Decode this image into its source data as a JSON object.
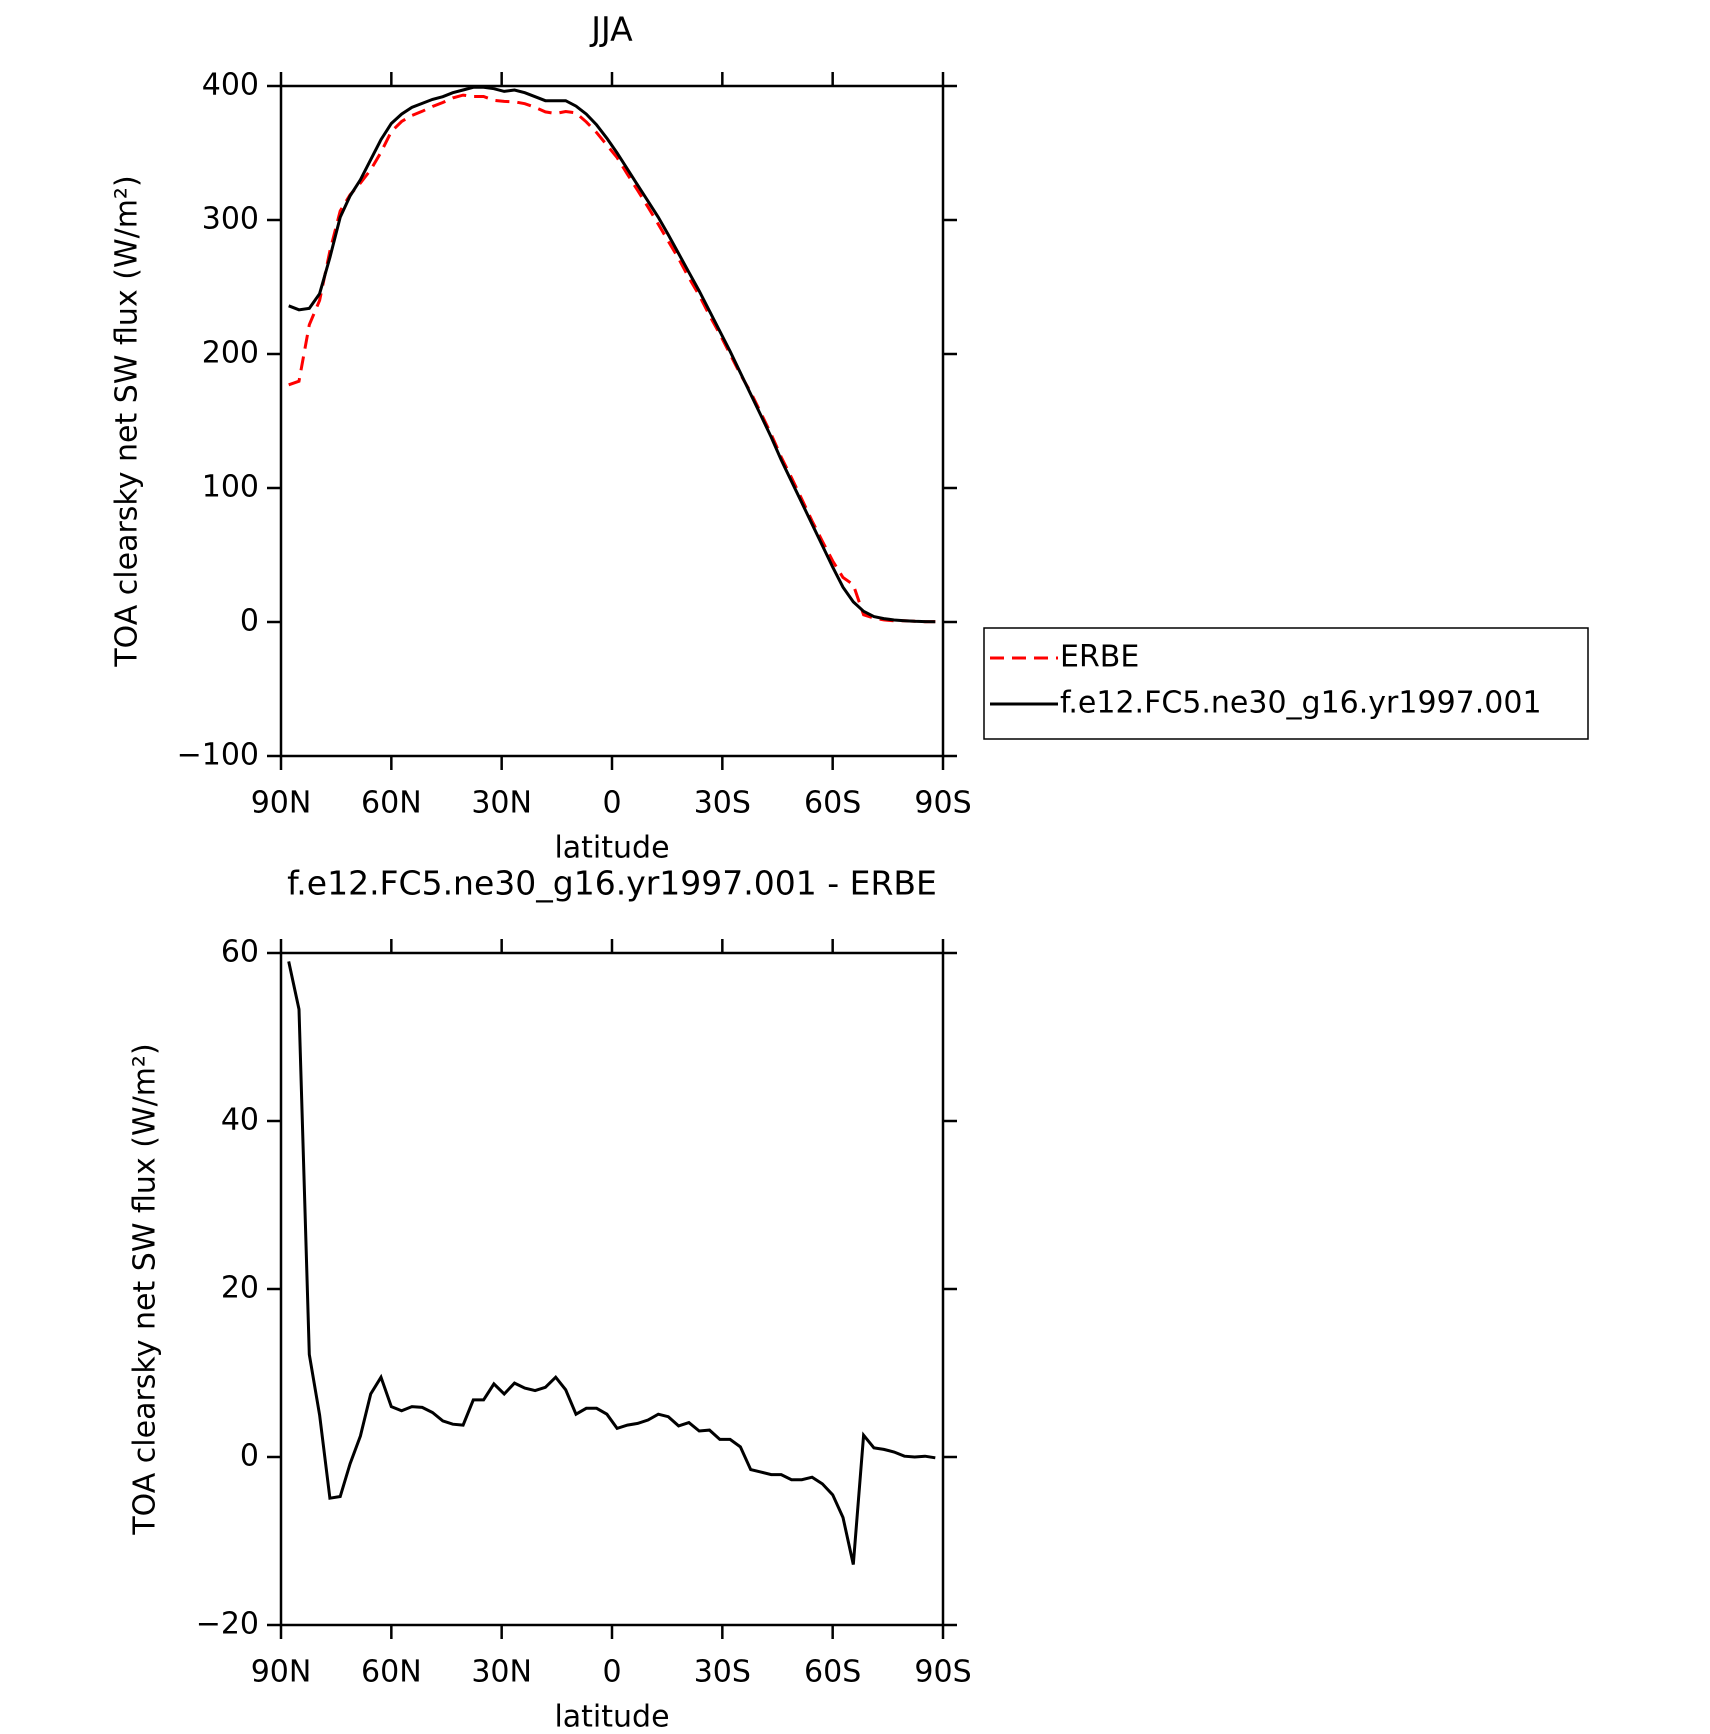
{
  "chart_data": [
    {
      "type": "line",
      "title": "JJA",
      "x_label": "latitude",
      "y_label": "TOA clearsky net SW flux (W/m²)",
      "x": [
        87.9,
        85.1,
        82.3,
        79.5,
        76.7,
        73.9,
        71.2,
        68.4,
        65.6,
        62.8,
        60.0,
        57.2,
        54.4,
        51.6,
        48.8,
        46.0,
        43.3,
        40.5,
        37.7,
        34.9,
        32.1,
        29.3,
        26.5,
        23.7,
        20.9,
        18.1,
        15.3,
        12.6,
        9.8,
        7.0,
        4.2,
        1.4,
        -1.4,
        -4.2,
        -7.0,
        -9.8,
        -12.6,
        -15.3,
        -18.1,
        -20.9,
        -23.7,
        -26.5,
        -29.3,
        -32.1,
        -34.9,
        -37.7,
        -40.5,
        -43.3,
        -46.0,
        -48.8,
        -51.6,
        -54.4,
        -57.2,
        -60.0,
        -62.8,
        -65.6,
        -68.4,
        -71.2,
        -73.9,
        -76.7,
        -79.5,
        -82.3,
        -85.1,
        -87.9
      ],
      "series": [
        {
          "name": "ERBE",
          "color": "#ff0000",
          "dashed": true,
          "values": [
            177,
            179.7,
            221.8,
            240,
            276.9,
            306.7,
            318.8,
            327.5,
            337.5,
            350.5,
            366,
            373.5,
            378,
            381.1,
            384.7,
            387.7,
            391.1,
            393.2,
            392.2,
            392.2,
            389.3,
            388.5,
            388.2,
            386.8,
            384.1,
            380.7,
            379.5,
            381,
            379.9,
            373.2,
            365.2,
            355.9,
            346.6,
            334.2,
            322,
            309.6,
            296.9,
            284.2,
            271.3,
            256.9,
            243.9,
            228.8,
            214.9,
            199.9,
            184.8,
            171.5,
            155.8,
            140.1,
            123.1,
            107.7,
            91.7,
            75.4,
            60.2,
            45.5,
            33.2,
            27.8,
            5.4,
            2.9,
            1.6,
            0.9,
            0.9,
            0.5,
            0.2,
            0.3
          ]
        },
        {
          "name": "f.e12.FC5.ne30_g16.yr1997.001",
          "color": "#000000",
          "dashed": false,
          "values": [
            236,
            233,
            234,
            245,
            272,
            302,
            318,
            330,
            345,
            360,
            372,
            379,
            384,
            387,
            390,
            392,
            395,
            397,
            399,
            399,
            398,
            396,
            397,
            395,
            392,
            389,
            389,
            389,
            385,
            379,
            371,
            361,
            350,
            338,
            326,
            314,
            302,
            289,
            275,
            261,
            247,
            232,
            217,
            202,
            186,
            170,
            154,
            138,
            121,
            105,
            89,
            73,
            57,
            41,
            26,
            15,
            8,
            4,
            2.5,
            1.5,
            1,
            0.5,
            0.3,
            0.2
          ]
        }
      ],
      "xlim": [
        90,
        -90
      ],
      "xticks": [
        {
          "value": 90,
          "label": "90N"
        },
        {
          "value": 60,
          "label": "60N"
        },
        {
          "value": 30,
          "label": "30N"
        },
        0,
        {
          "value": -30,
          "label": "30S"
        },
        {
          "value": -60,
          "label": "60S"
        },
        {
          "value": -90,
          "label": "90S"
        }
      ],
      "ylim": [
        -100,
        400
      ],
      "yticks": [
        {
          "value": -100,
          "label": "−100"
        },
        0,
        100,
        200,
        300,
        400
      ],
      "legend": "right"
    },
    {
      "type": "line",
      "title": "f.e12.FC5.ne30_g16.yr1997.001 - ERBE",
      "x_label": "latitude",
      "y_label": "TOA clearsky net SW flux (W/m²)",
      "x": [
        87.9,
        85.1,
        82.3,
        79.5,
        76.7,
        73.9,
        71.2,
        68.4,
        65.6,
        62.8,
        60.0,
        57.2,
        54.4,
        51.6,
        48.8,
        46.0,
        43.3,
        40.5,
        37.7,
        34.9,
        32.1,
        29.3,
        26.5,
        23.7,
        20.9,
        18.1,
        15.3,
        12.6,
        9.8,
        7.0,
        4.2,
        1.4,
        -1.4,
        -4.2,
        -7.0,
        -9.8,
        -12.6,
        -15.3,
        -18.1,
        -20.9,
        -23.7,
        -26.5,
        -29.3,
        -32.1,
        -34.9,
        -37.7,
        -40.5,
        -43.3,
        -46.0,
        -48.8,
        -51.6,
        -54.4,
        -57.2,
        -60.0,
        -62.8,
        -65.6,
        -68.4,
        -71.2,
        -73.9,
        -76.7,
        -79.5,
        -82.3,
        -85.1,
        -87.9
      ],
      "series": [
        {
          "color": "#000000",
          "dashed": false,
          "values": [
            59,
            53.3,
            12.2,
            5,
            -4.9,
            -4.7,
            -0.8,
            2.5,
            7.5,
            9.5,
            6,
            5.5,
            6,
            5.9,
            5.3,
            4.3,
            3.9,
            3.8,
            6.8,
            6.8,
            8.7,
            7.5,
            8.8,
            8.2,
            7.9,
            8.3,
            9.5,
            8,
            5.1,
            5.8,
            5.8,
            5.1,
            3.4,
            3.8,
            4.0,
            4.4,
            5.1,
            4.8,
            3.7,
            4.1,
            3.1,
            3.2,
            2.1,
            2.1,
            1.2,
            -1.5,
            -1.8,
            -2.1,
            -2.1,
            -2.7,
            -2.7,
            -2.4,
            -3.2,
            -4.5,
            -7.2,
            -12.8,
            2.6,
            1.1,
            0.9,
            0.6,
            0.1,
            0,
            0.1,
            -0.1
          ]
        }
      ],
      "xlim": [
        90,
        -90
      ],
      "xticks": [
        {
          "value": 90,
          "label": "90N"
        },
        {
          "value": 60,
          "label": "60N"
        },
        {
          "value": 30,
          "label": "30N"
        },
        0,
        {
          "value": -30,
          "label": "30S"
        },
        {
          "value": -60,
          "label": "60S"
        },
        {
          "value": -90,
          "label": "90S"
        }
      ],
      "ylim": [
        -20,
        60
      ],
      "yticks": [
        {
          "value": -20,
          "label": "−20"
        },
        0,
        20,
        40,
        60
      ]
    }
  ]
}
